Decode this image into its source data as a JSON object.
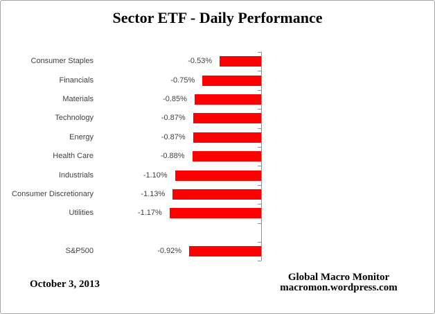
{
  "title": "Sector ETF - Daily Performance",
  "footer": {
    "date": "October 3, 2013",
    "attribution_line1": "Global Macro Monitor",
    "attribution_line2": "macromon.wordpress.com"
  },
  "colors": {
    "bar": "#ff0000",
    "axis": "#8e8e8e",
    "label_text": "#3f3f3f",
    "frame_border": "#a3a3a3"
  },
  "chart_data": {
    "type": "bar",
    "orientation": "horizontal",
    "title": "Sector ETF - Daily Performance",
    "xlabel": "",
    "ylabel": "",
    "grid": false,
    "legend": false,
    "bar_color": "#ff0000",
    "zero_baseline_on_right": true,
    "categories": [
      "Consumer Staples",
      "Financials",
      "Materials",
      "Technology",
      "Energy",
      "Health Care",
      "Industrials",
      "Consumer Discretionary",
      "Utilities",
      "",
      "S&P500"
    ],
    "values": [
      -0.53,
      -0.75,
      -0.85,
      -0.87,
      -0.87,
      -0.88,
      -1.1,
      -1.13,
      -1.17,
      null,
      -0.92
    ],
    "data_labels": [
      "-0.53%",
      "-0.75%",
      "-0.85%",
      "-0.87%",
      "-0.87%",
      "-0.88%",
      "-1.10%",
      "-1.13%",
      "-1.17%",
      "",
      "-0.92%"
    ]
  }
}
